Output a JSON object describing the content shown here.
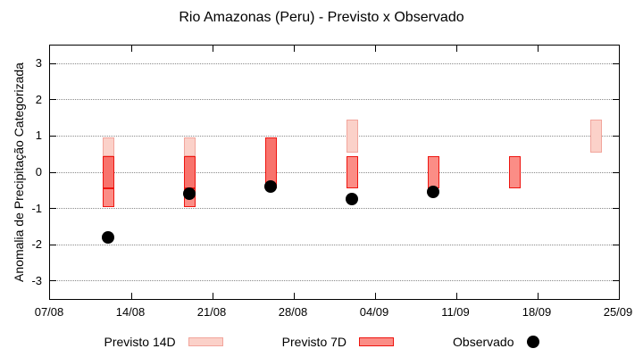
{
  "chart_data": {
    "type": "bar",
    "title": "Rio Amazonas (Peru) - Previsto x Observado",
    "ylabel": "Anomalia de Precipitação Categorizada",
    "ylim": [
      -3.5,
      3.5
    ],
    "yticks": [
      -3,
      -2,
      -1,
      0,
      1,
      2,
      3
    ],
    "grid": "horizontal-dotted",
    "x_axis": {
      "tick_labels": [
        "07/08",
        "14/08",
        "21/08",
        "28/08",
        "04/09",
        "11/09",
        "18/09",
        "25/09"
      ],
      "tick_days": [
        0,
        7,
        14,
        21,
        28,
        35,
        42,
        49
      ],
      "total_days": 49
    },
    "legend": [
      {
        "label": "Previsto 14D",
        "swatch": "14d"
      },
      {
        "label": "Previsto 7D",
        "swatch": "7d"
      },
      {
        "label": "Observado",
        "swatch": "dot"
      }
    ],
    "groups": [
      {
        "date": "12/08",
        "day": 5,
        "previsto_14d": [
          -0.45,
          0.95
        ],
        "previsto_7d": [
          -0.95,
          0.45
        ],
        "observado": -1.8,
        "segments": [
          {
            "kind": "14d",
            "from": 0.45,
            "to": 0.95
          },
          {
            "kind": "overlap",
            "from": -0.45,
            "to": 0.45
          },
          {
            "kind": "7d",
            "from": -0.95,
            "to": -0.45
          }
        ]
      },
      {
        "date": "19/08",
        "day": 12,
        "previsto_14d": [
          -0.45,
          0.95
        ],
        "previsto_7d": [
          -0.95,
          0.45
        ],
        "observado": -0.6,
        "segments": [
          {
            "kind": "14d",
            "from": 0.45,
            "to": 0.95
          },
          {
            "kind": "overlap",
            "from": -0.45,
            "to": 0.45
          },
          {
            "kind": "7d",
            "from": -0.95,
            "to": -0.45
          }
        ]
      },
      {
        "date": "26/08",
        "day": 19,
        "previsto_14d": [
          -0.45,
          0.95
        ],
        "previsto_7d": [
          -0.45,
          0.95
        ],
        "observado": -0.4,
        "segments": [
          {
            "kind": "overlap",
            "from": -0.45,
            "to": 0.95
          }
        ]
      },
      {
        "date": "02/09",
        "day": 26,
        "previsto_14d": [
          0.55,
          1.45
        ],
        "previsto_7d": [
          -0.45,
          0.45
        ],
        "observado": -0.75,
        "segments": [
          {
            "kind": "14d",
            "from": 0.55,
            "to": 1.45
          },
          {
            "kind": "7d",
            "from": -0.45,
            "to": 0.45
          }
        ]
      },
      {
        "date": "09/09",
        "day": 33,
        "previsto_14d": null,
        "previsto_7d": [
          -0.45,
          0.45
        ],
        "observado": -0.55,
        "segments": [
          {
            "kind": "7d",
            "from": -0.45,
            "to": 0.45
          }
        ]
      },
      {
        "date": "16/09",
        "day": 40,
        "previsto_14d": null,
        "previsto_7d": [
          -0.45,
          0.45
        ],
        "observado": null,
        "segments": [
          {
            "kind": "7d",
            "from": -0.45,
            "to": 0.45
          }
        ]
      },
      {
        "date": "23/09",
        "day": 47,
        "previsto_14d": [
          0.55,
          1.45
        ],
        "previsto_7d": null,
        "observado": null,
        "segments": [
          {
            "kind": "14d",
            "from": 0.55,
            "to": 1.45
          }
        ]
      }
    ],
    "colors": {
      "fill_14d": "#fbd1c9",
      "border_14d": "#f2a59c",
      "fill_7d": "#fb8d86",
      "border_7d": "#ee1510",
      "fill_overlap": "#f8736c",
      "observed": "#000000",
      "grid": "#8a8a8a"
    }
  }
}
